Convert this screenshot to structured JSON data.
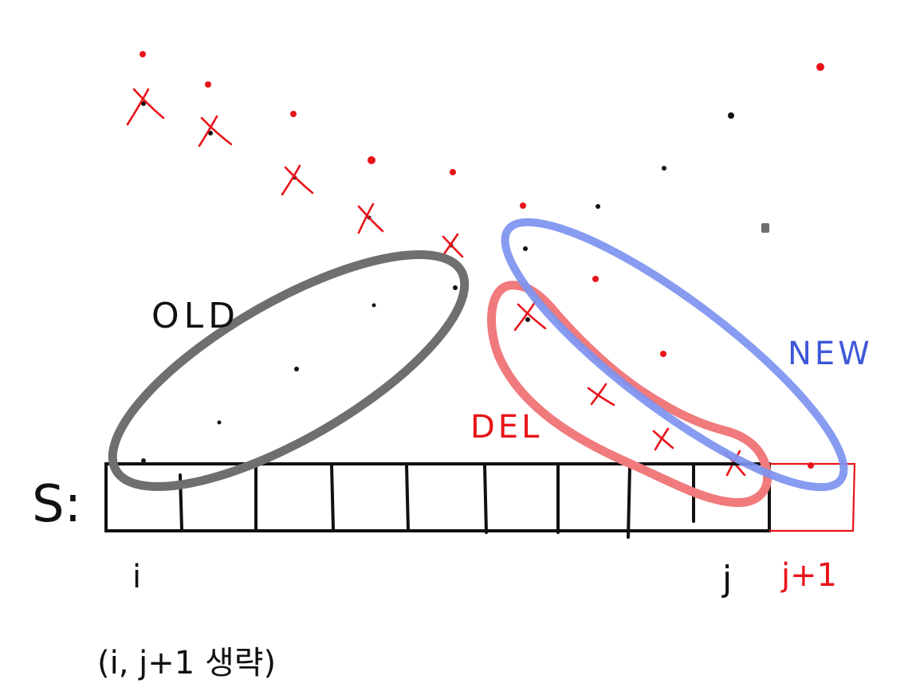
{
  "labels": {
    "old": "OLD",
    "new": "NEW",
    "del": "DEL",
    "s": "S:",
    "i": "i",
    "j": "j",
    "j_plus_1": "j+1",
    "note": "(i, j+1 생략)"
  },
  "colors": {
    "ink": "#111111",
    "red": "#e8141a",
    "old_ellipse": "#6f6f6f",
    "new_ellipse": "#7d93f0",
    "del_region": "#f07a7c"
  }
}
